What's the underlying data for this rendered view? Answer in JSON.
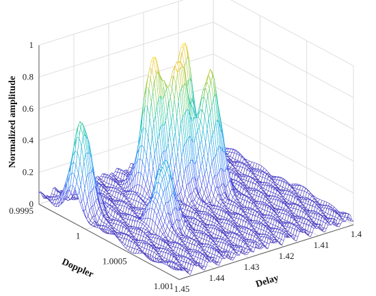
{
  "chart_data": {
    "type": "surface",
    "title": "",
    "xlabel": "Delay",
    "ylabel": "Doppler",
    "zlabel": "Normalized amplitude",
    "x_ticks": [
      "1.4",
      "1.41",
      "1.42",
      "1.43",
      "1.44",
      "1.45"
    ],
    "y_ticks": [
      "0.9995",
      "1",
      "1.0005",
      "1.001"
    ],
    "z_ticks": [
      "0",
      "0.2",
      "0.4",
      "0.6",
      "0.8",
      "1"
    ],
    "xlim": [
      1.4,
      1.45
    ],
    "ylim": [
      0.9995,
      1.001
    ],
    "zlim": [
      0,
      1
    ],
    "grid": true,
    "colormap": "parula",
    "noise_floor": 0.08,
    "peaks": [
      {
        "delay": 1.447,
        "doppler": 0.99985,
        "amplitude": 0.55
      },
      {
        "delay": 1.437,
        "doppler": 1.00035,
        "amplitude": 0.4
      },
      {
        "delay": 1.428,
        "doppler": 0.9999,
        "amplitude": 0.85
      },
      {
        "delay": 1.423,
        "doppler": 1.0,
        "amplitude": 0.82
      },
      {
        "delay": 1.418,
        "doppler": 0.99985,
        "amplitude": 0.85
      },
      {
        "delay": 1.417,
        "doppler": 1.0001,
        "amplitude": 0.75
      }
    ]
  }
}
